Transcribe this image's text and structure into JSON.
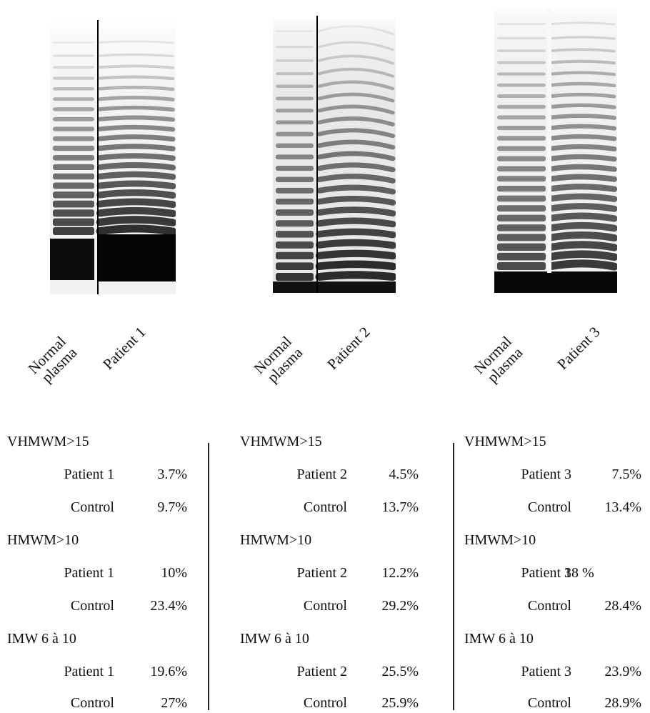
{
  "gels": [
    {
      "lanes": [
        "Normal plasma",
        "Patient 1"
      ],
      "label_left_line1": "Normal",
      "label_left_line2": "plasma",
      "label_right": "Patient 1"
    },
    {
      "lanes": [
        "Normal plasma",
        "Patient 2"
      ],
      "label_left_line1": "Normal",
      "label_left_line2": "plasma",
      "label_right": "Patient 2"
    },
    {
      "lanes": [
        "Normal plasma",
        "Patient 3"
      ],
      "label_left_line1": "Normal",
      "label_left_line2": "plasma",
      "label_right": "Patient 3"
    }
  ],
  "tables": [
    {
      "groups": [
        {
          "title": "VHMWM>15",
          "patient_label": "Patient 1",
          "patient_value": "3.7%",
          "control_label": "Control",
          "control_value": "9.7%"
        },
        {
          "title": "HMWM>10",
          "patient_label": "Patient 1",
          "patient_value": "10%",
          "control_label": "Control",
          "control_value": "23.4%"
        },
        {
          "title": "IMW 6 à 10",
          "patient_label": "Patient 1",
          "patient_value": "19.6%",
          "control_label": "Control",
          "control_value": "27%"
        }
      ]
    },
    {
      "groups": [
        {
          "title": "VHMWM>15",
          "patient_label": "Patient 2",
          "patient_value": "4.5%",
          "control_label": "Control",
          "control_value": "13.7%"
        },
        {
          "title": "HMWM>10",
          "patient_label": "Patient 2",
          "patient_value": "12.2%",
          "control_label": "Control",
          "control_value": "29.2%"
        },
        {
          "title": "IMW 6 à 10",
          "patient_label": "Patient 2",
          "patient_value": "25.5%",
          "control_label": "Control",
          "control_value": "25.9%"
        }
      ]
    },
    {
      "groups": [
        {
          "title": "VHMWM>15",
          "patient_label": "Patient 3",
          "patient_value": "7.5%",
          "control_label": "Control",
          "control_value": "13.4%"
        },
        {
          "title": "HMWM>10",
          "patient_label": "Patient 3",
          "patient_value": "18 %",
          "control_label": "Control",
          "control_value": "28.4%"
        },
        {
          "title": "IMW 6 à 10",
          "patient_label": "Patient 3",
          "patient_value": "23.9%",
          "control_label": "Control",
          "control_value": "28.9%"
        }
      ]
    }
  ]
}
